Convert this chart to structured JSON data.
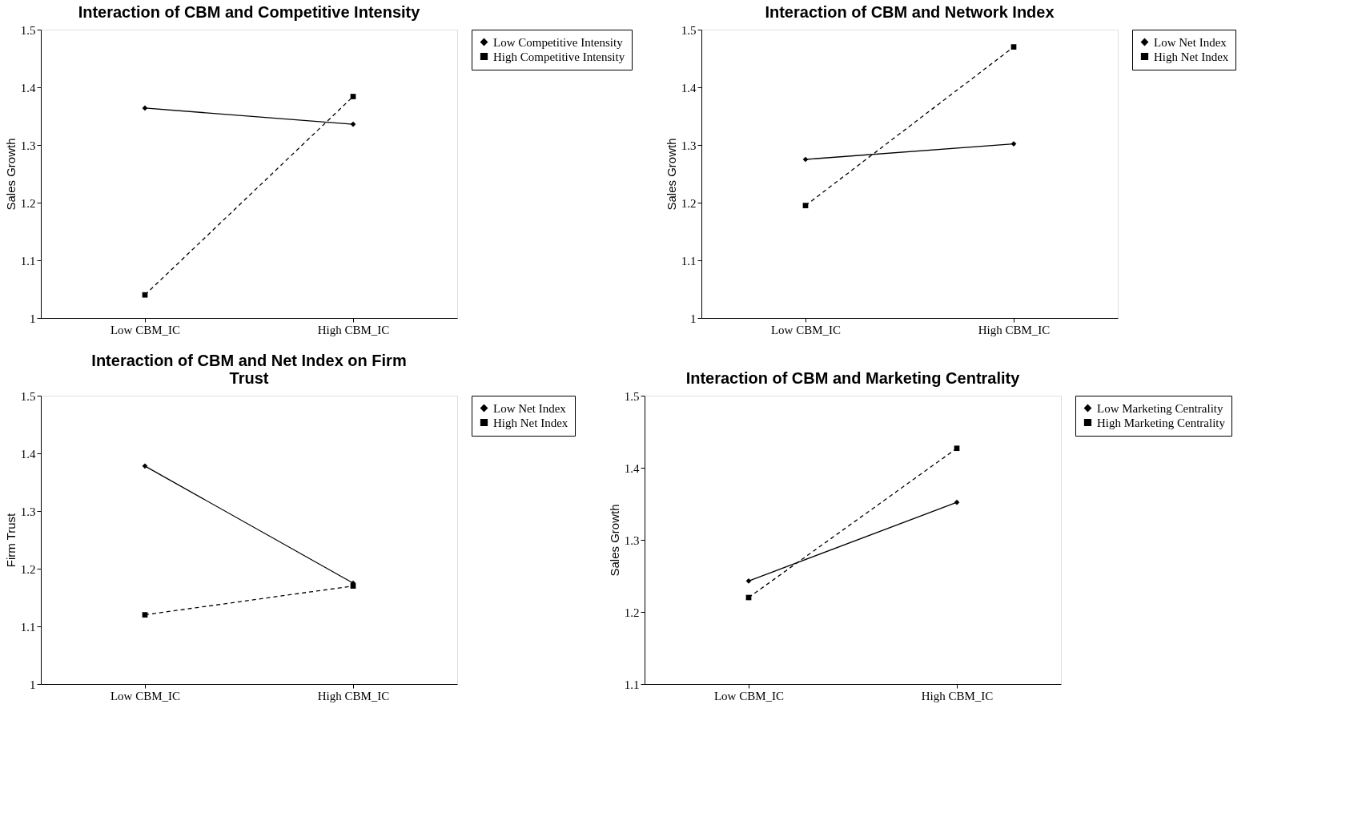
{
  "chart_data": [
    {
      "type": "line",
      "title": "Interaction of CBM and Competitive Intensity",
      "ylabel": "Sales Growth",
      "categories": [
        "Low CBM_IC",
        "High CBM_IC"
      ],
      "ylim": [
        1,
        1.5
      ],
      "yticks": [
        1,
        1.1,
        1.2,
        1.3,
        1.4,
        1.5
      ],
      "grid": false,
      "legend": "right",
      "series": [
        {
          "name": "Low Competitive Intensity",
          "color": "#000000",
          "marker": "diamond",
          "line_style": "solid",
          "values": [
            1.364,
            1.336
          ]
        },
        {
          "name": "High Competitive Intensity",
          "color": "#000000",
          "marker": "square",
          "line_style": "dashed",
          "values": [
            1.04,
            1.384
          ]
        }
      ]
    },
    {
      "type": "line",
      "title": "Interaction of CBM and Network Index",
      "ylabel": "Sales Growth",
      "categories": [
        "Low CBM_IC",
        "High CBM_IC"
      ],
      "ylim": [
        1,
        1.5
      ],
      "yticks": [
        1,
        1.1,
        1.2,
        1.3,
        1.4,
        1.5
      ],
      "grid": false,
      "legend": "right",
      "series": [
        {
          "name": "Low Net Index",
          "color": "#000000",
          "marker": "diamond",
          "line_style": "solid",
          "values": [
            1.275,
            1.302
          ]
        },
        {
          "name": "High Net Index",
          "color": "#000000",
          "marker": "square",
          "line_style": "dashed",
          "values": [
            1.195,
            1.47
          ]
        }
      ]
    },
    {
      "type": "line",
      "title": "Interaction of CBM and Net Index on Firm Trust",
      "ylabel": "Firm Trust",
      "categories": [
        "Low CBM_IC",
        "High CBM_IC"
      ],
      "ylim": [
        1,
        1.5
      ],
      "yticks": [
        1,
        1.1,
        1.2,
        1.3,
        1.4,
        1.5
      ],
      "grid": false,
      "legend": "right",
      "series": [
        {
          "name": "Low Net Index",
          "color": "#000000",
          "marker": "diamond",
          "line_style": "solid",
          "values": [
            1.378,
            1.175
          ]
        },
        {
          "name": "High Net Index",
          "color": "#000000",
          "marker": "square",
          "line_style": "dashed",
          "values": [
            1.12,
            1.17
          ]
        }
      ]
    },
    {
      "type": "line",
      "title": "Interaction of CBM and Marketing Centrality",
      "ylabel": "Sales Growth",
      "categories": [
        "Low CBM_IC",
        "High CBM_IC"
      ],
      "ylim": [
        1.1,
        1.5
      ],
      "yticks": [
        1.1,
        1.2,
        1.3,
        1.4,
        1.5
      ],
      "grid": false,
      "legend": "right",
      "series": [
        {
          "name": "Low Marketing Centrality",
          "color": "#000000",
          "marker": "diamond",
          "line_style": "solid",
          "values": [
            1.243,
            1.352
          ]
        },
        {
          "name": "High Marketing Centrality",
          "color": "#000000",
          "marker": "square",
          "line_style": "dashed",
          "values": [
            1.22,
            1.427
          ]
        }
      ]
    }
  ]
}
